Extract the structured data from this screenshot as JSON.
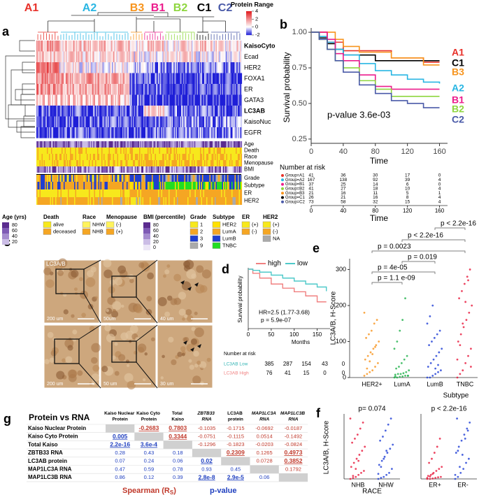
{
  "panel_a": {
    "label": "a",
    "clusters": [
      {
        "name": "A1",
        "color": "#e8312a"
      },
      {
        "name": "A2",
        "color": "#29b6e3"
      },
      {
        "name": "B3",
        "color": "#f7941d"
      },
      {
        "name": "B1",
        "color": "#ec1c8c"
      },
      {
        "name": "B2",
        "color": "#8ed63f"
      },
      {
        "name": "C1",
        "color": "#000000"
      },
      {
        "name": "C2",
        "color": "#4a5aa8"
      }
    ],
    "legend_title": "Protein Range",
    "legend_ticks": [
      4,
      2,
      0,
      -2
    ],
    "protein_rows": [
      "KaisoCyto",
      "Ecad",
      "HER2",
      "FOXA1",
      "ER",
      "GATA3",
      "LC3AB",
      "KaisoNuc",
      "EGFR"
    ],
    "clinical_rows": [
      "Age",
      "Death",
      "Race",
      "Menopause",
      "BMI",
      "Grade",
      "Subtype",
      "ER",
      "HER2"
    ],
    "legends": [
      {
        "title": "Age (yrs)",
        "ticks": [
          80,
          60,
          40,
          20
        ]
      },
      {
        "title": "Death",
        "items": [
          "alive",
          "deceased"
        ]
      },
      {
        "title": "Race",
        "items": [
          "NHW",
          "NHB"
        ]
      },
      {
        "title": "Menopause",
        "items": [
          "(-)",
          "(+)"
        ]
      },
      {
        "title": "BMI (percentile)",
        "ticks": [
          80,
          60,
          40,
          20,
          0
        ]
      },
      {
        "title": "Grade",
        "items": [
          "1",
          "2",
          "3",
          "9"
        ]
      },
      {
        "title": "Subtype",
        "items": [
          "HER2",
          "LumA",
          "LumB",
          "TNBC"
        ]
      },
      {
        "title": "ER",
        "items": [
          "(+)",
          "(-)"
        ]
      },
      {
        "title": "HER2",
        "items": [
          "(+)",
          "(-)",
          "NA"
        ]
      }
    ]
  },
  "panel_b": {
    "label": "b",
    "type": "step",
    "ylabel": "Survival probability",
    "xlabel": "Time",
    "annotation": "p-value 3.6e-03",
    "x": [
      0,
      10,
      20,
      30,
      40,
      60,
      80,
      100,
      120,
      140,
      160
    ],
    "xlim": [
      0,
      170
    ],
    "ylim": [
      0.22,
      1.03
    ],
    "xticks": [
      0,
      40,
      80,
      120,
      160
    ],
    "yticks": [
      {
        "value": 1,
        "label": "1.00"
      },
      0.75,
      {
        "value": 0.5,
        "label": "0.50"
      },
      0.25
    ],
    "series": [
      {
        "name": "A1",
        "color": "#e8312a",
        "values": [
          1,
          1,
          0.93,
          0.93,
          0.87,
          0.87,
          0.87,
          0.82,
          0.82,
          0.79,
          0.79
        ]
      },
      {
        "name": "C1",
        "color": "#000000",
        "values": [
          1,
          0.96,
          0.92,
          0.88,
          0.84,
          0.84,
          0.8,
          0.8,
          0.8,
          0.8,
          0.8
        ]
      },
      {
        "name": "B3",
        "color": "#f7941d",
        "values": [
          1,
          1,
          1,
          0.95,
          0.9,
          0.86,
          0.86,
          0.82,
          0.82,
          0.77,
          0.77
        ]
      },
      {
        "name": "A2",
        "color": "#29b6e3",
        "values": [
          1,
          0.97,
          0.93,
          0.88,
          0.84,
          0.78,
          0.73,
          0.7,
          0.67,
          0.65,
          0.64
        ]
      },
      {
        "name": "B1",
        "color": "#ec1c8c",
        "values": [
          1,
          1,
          0.95,
          0.85,
          0.8,
          0.7,
          0.62,
          0.6,
          0.6,
          0.6,
          0.6
        ]
      },
      {
        "name": "B2",
        "color": "#8ed63f",
        "values": [
          1,
          0.95,
          0.88,
          0.8,
          0.75,
          0.66,
          0.6,
          0.55,
          0.55,
          0.55,
          0.55
        ]
      },
      {
        "name": "C2",
        "color": "#4a5aa8",
        "values": [
          1,
          0.95,
          0.88,
          0.8,
          0.72,
          0.63,
          0.57,
          0.52,
          0.5,
          0.47,
          0.47
        ]
      }
    ],
    "risk_title": "Number at risk",
    "risk_xlabel": "Time",
    "risk_rows": [
      {
        "label": "Group=A1",
        "color": "#e8312a",
        "counts": [
          41,
          36,
          30,
          17,
          0
        ]
      },
      {
        "label": "Group=A2",
        "color": "#29b6e3",
        "counts": [
          167,
          138,
          92,
          39,
          4
        ]
      },
      {
        "label": "Group=B1",
        "color": "#ec1c8c",
        "counts": [
          37,
          25,
          14,
          6,
          0
        ]
      },
      {
        "label": "Group=B2",
        "color": "#8ed63f",
        "counts": [
          41,
          27,
          18,
          10,
          4
        ]
      },
      {
        "label": "Group=B3",
        "color": "#f7941d",
        "counts": [
          21,
          16,
          11,
          5,
          1
        ]
      },
      {
        "label": "Group=C1",
        "color": "#000000",
        "counts": [
          26,
          21,
          16,
          8,
          4
        ]
      },
      {
        "label": "Group=C2",
        "color": "#4a5aa8",
        "counts": [
          73,
          58,
          32,
          15,
          4
        ]
      }
    ]
  },
  "panel_c": {
    "label": "c",
    "stain": "LC3A/B",
    "scale_bars": [
      "200 um",
      "50um",
      "40 um",
      "200 um",
      "50 um",
      "30 um"
    ]
  },
  "panel_d": {
    "label": "d",
    "type": "step",
    "ylabel": "Survival probability",
    "xlabel": "Months",
    "x": [
      0,
      10,
      25,
      50,
      75,
      100,
      125,
      150,
      170
    ],
    "xlim": [
      0,
      175
    ],
    "ylim": [
      0,
      1
    ],
    "xticks": [
      0,
      50,
      100,
      150
    ],
    "series": [
      {
        "name": "high",
        "color": "#f08080",
        "values": [
          1,
          0.93,
          0.85,
          0.75,
          0.68,
          0.62,
          0.55,
          0.45,
          0.45
        ]
      },
      {
        "name": "low",
        "color": "#4ec9c9",
        "values": [
          1,
          0.98,
          0.95,
          0.9,
          0.85,
          0.8,
          0.75,
          0.7,
          0.63
        ]
      }
    ],
    "annotations": [
      "HR=2.5 (1.77-3.68)",
      "p = 5.9e-07"
    ],
    "risk_title": "Number at risk",
    "risk_rows": [
      {
        "label": "LC3AB Low",
        "color": "#2fb3b3",
        "counts": [
          385,
          287,
          154,
          43,
          0
        ]
      },
      {
        "label": "LC3AB High",
        "color": "#f08080",
        "counts": [
          76,
          41,
          15,
          0,
          0
        ]
      }
    ]
  },
  "panel_e": {
    "label": "e",
    "type": "strip",
    "ylabel": "LC3A/B, H-Score",
    "xlabel": "Subtype",
    "ylim": [
      0,
      330
    ],
    "yticks": [
      0,
      100,
      200,
      300
    ],
    "categories": [
      "HER2+",
      "LumA",
      "LumB",
      "TNBC"
    ],
    "colors": [
      "#f7941d",
      "#21b24b",
      "#1f3fd6",
      "#e8193c"
    ],
    "values": [
      [
        5,
        10,
        15,
        20,
        30,
        40,
        50,
        60,
        70,
        80,
        90,
        100,
        110,
        120,
        130,
        150,
        160,
        180,
        25,
        45,
        65,
        85
      ],
      [
        0,
        0,
        2,
        3,
        5,
        5,
        8,
        10,
        10,
        12,
        15,
        20,
        25,
        30,
        40,
        50,
        60,
        80,
        100,
        130,
        160,
        220,
        5,
        3
      ],
      [
        0,
        0,
        5,
        10,
        15,
        20,
        30,
        40,
        50,
        60,
        70,
        80,
        90,
        100,
        110,
        120,
        130,
        150,
        170,
        200,
        25,
        35
      ],
      [
        0,
        10,
        20,
        40,
        60,
        80,
        100,
        120,
        140,
        160,
        180,
        200,
        220,
        240,
        260,
        280,
        300,
        50,
        90,
        150,
        210,
        270,
        30
      ]
    ],
    "comparisons": [
      "p = 1.1 e-09",
      "p = 4e-05",
      "p = 0.019",
      "p = 0.0023",
      "p < 2.2e-16",
      "p < 2.2e-16"
    ]
  },
  "panel_f": {
    "label": "f",
    "type": "strip",
    "ylabel": "LC3A/B, H-Score",
    "ylim": [
      0,
      330
    ],
    "colors": [
      "#e8193c",
      "#1f3fd6"
    ],
    "plots": [
      {
        "xlabel": "RACE",
        "annotation": "p= 0.074",
        "categories": [
          "NHB",
          "NHW"
        ],
        "values": [
          [
            0,
            5,
            10,
            20,
            30,
            40,
            60,
            80,
            100,
            120,
            140,
            160,
            180,
            200,
            220,
            250,
            280,
            300,
            15,
            50,
            90
          ],
          [
            0,
            5,
            10,
            20,
            30,
            50,
            70,
            90,
            110,
            130,
            150,
            170,
            190,
            210,
            240,
            270,
            300,
            25,
            60,
            100,
            140
          ]
        ]
      },
      {
        "annotation": "p < 2.2e-16",
        "categories": [
          "ER+",
          "ER-"
        ],
        "values": [
          [
            0,
            0,
            2,
            5,
            8,
            10,
            15,
            20,
            30,
            40,
            50,
            60,
            80,
            100,
            130,
            160,
            200,
            5,
            12,
            25
          ],
          [
            0,
            10,
            30,
            50,
            80,
            100,
            130,
            160,
            190,
            220,
            250,
            280,
            300,
            60,
            120,
            200,
            240,
            20,
            140
          ]
        ]
      }
    ]
  },
  "panel_g": {
    "label": "g",
    "title": "Protein vs RNA",
    "columns": [
      "Kaiso Nuclear Protein",
      "Kaiso Cyto Protein",
      "Total Kaiso",
      "ZBTB33 RNA",
      "LC3AB protein",
      "MAP1LC3A RNA",
      "MAP1LC3B RNA"
    ],
    "rows": [
      {
        "name": "Kaiso Nuclear Protein",
        "cells": [
          null,
          "-0.2683",
          "0.7803",
          "-0.1035",
          "-0.1715",
          "-0.0692",
          "-0.0187"
        ]
      },
      {
        "name": "Kaiso Cyto Protein",
        "cells": [
          "0.005",
          null,
          "0.3344",
          "-0.0751",
          "-0.1115",
          "0.0514",
          "-0.1492"
        ]
      },
      {
        "name": "Total Kaiso",
        "cells": [
          "2.2e-16",
          "3.6e-4",
          null,
          "-0.1296",
          "-0.1823",
          "-0.0203",
          "-0.0824"
        ]
      },
      {
        "name": "ZBTB33 RNA",
        "cells": [
          "0.28",
          "0.43",
          "0.18",
          null,
          "0.2309",
          "0.1265",
          "0.4973"
        ]
      },
      {
        "name": "LC3AB protein",
        "cells": [
          "0.07",
          "0.24",
          "0.06",
          "0.02",
          null,
          "0.0728",
          "0.3852"
        ]
      },
      {
        "name": "MAP1LC3A RNA",
        "cells": [
          "0.47",
          "0.59",
          "0.78",
          "0.93",
          "0.45",
          null,
          "0.1792"
        ]
      },
      {
        "name": "MAP1LC3B RNA",
        "cells": [
          "0.86",
          "0.12",
          "0.39",
          "2.8e-8",
          "2.9e-5",
          "0.06",
          null
        ]
      }
    ],
    "legend_spearman": [
      "Spearman (R",
      "S",
      ")"
    ],
    "legend_pvalue": "p-value"
  }
}
